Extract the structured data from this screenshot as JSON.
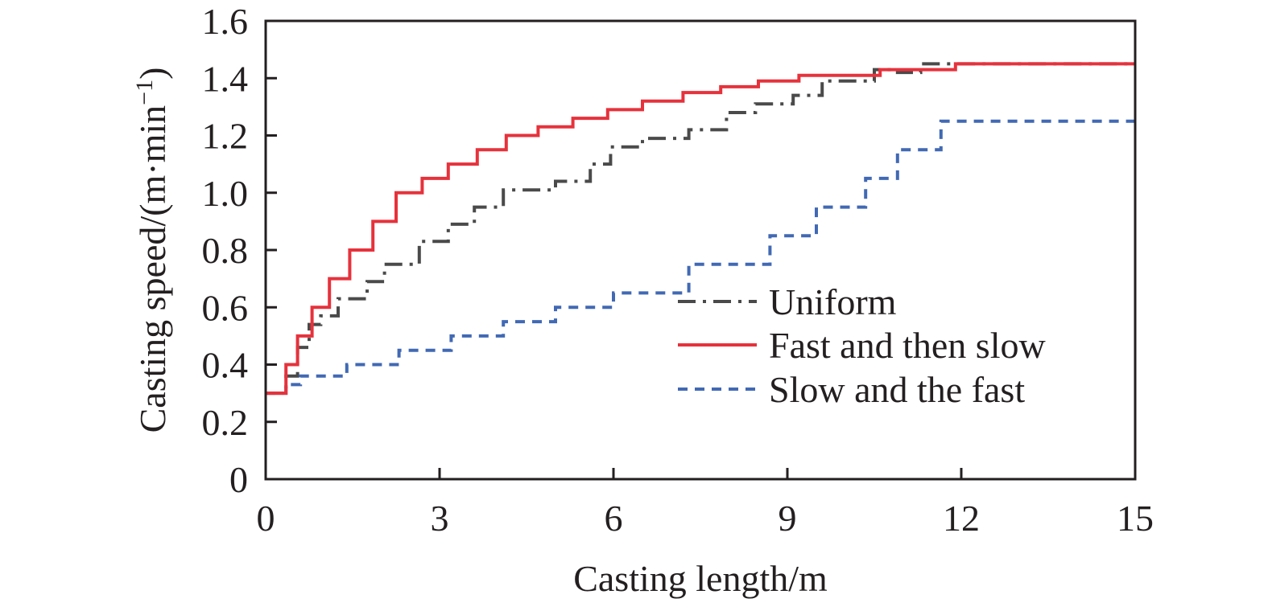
{
  "chart_data": {
    "type": "line",
    "title": "",
    "xlabel": "Casting length/m",
    "ylabel_main": "Casting speed/(m·min",
    "ylabel_sup": "−1",
    "ylabel_close": ")",
    "xlim": [
      0,
      15
    ],
    "ylim": [
      0,
      1.6
    ],
    "xticks": [
      0,
      3,
      6,
      9,
      12,
      15
    ],
    "xtick_labels": [
      "0",
      "3",
      "6",
      "9",
      "12",
      "15"
    ],
    "yticks": [
      0,
      0.2,
      0.4,
      0.6,
      0.8,
      1.0,
      1.2,
      1.4,
      1.6
    ],
    "ytick_labels": [
      "0",
      "0.2",
      "0.4",
      "0.6",
      "0.8",
      "1.0",
      "1.2",
      "1.4",
      "1.6"
    ],
    "grid": false,
    "legend_position": "lower-right",
    "series": [
      {
        "name": "Uniform",
        "color": "#4a4a4a",
        "style": "dash-dot",
        "x": [
          0,
          0.35,
          0.35,
          0.55,
          0.55,
          0.75,
          0.75,
          0.95,
          0.95,
          1.25,
          1.25,
          1.75,
          1.75,
          2.05,
          2.05,
          2.65,
          2.65,
          3.15,
          3.15,
          3.6,
          3.6,
          4.1,
          4.1,
          5.0,
          5.0,
          5.6,
          5.6,
          5.95,
          5.95,
          6.5,
          6.5,
          7.3,
          7.3,
          7.95,
          7.95,
          8.45,
          8.45,
          9.1,
          9.1,
          9.6,
          9.6,
          10.5,
          10.5,
          10.9,
          10.9,
          11.3,
          11.3,
          15
        ],
        "y": [
          0.3,
          0.3,
          0.36,
          0.36,
          0.46,
          0.46,
          0.54,
          0.54,
          0.57,
          0.57,
          0.63,
          0.63,
          0.69,
          0.69,
          0.75,
          0.75,
          0.83,
          0.83,
          0.89,
          0.89,
          0.95,
          0.95,
          1.01,
          1.01,
          1.04,
          1.04,
          1.1,
          1.1,
          1.16,
          1.16,
          1.19,
          1.19,
          1.22,
          1.22,
          1.28,
          1.28,
          1.31,
          1.31,
          1.34,
          1.34,
          1.39,
          1.39,
          1.43,
          1.43,
          1.42,
          1.42,
          1.45,
          1.45
        ]
      },
      {
        "name": "Fast and then slow",
        "color": "#e6323c",
        "style": "solid",
        "x": [
          0,
          0.35,
          0.35,
          0.55,
          0.55,
          0.8,
          0.8,
          1.1,
          1.1,
          1.45,
          1.45,
          1.85,
          1.85,
          2.25,
          2.25,
          2.7,
          2.7,
          3.15,
          3.15,
          3.65,
          3.65,
          4.15,
          4.15,
          4.7,
          4.7,
          5.3,
          5.3,
          5.9,
          5.9,
          6.5,
          6.5,
          7.2,
          7.2,
          7.85,
          7.85,
          8.5,
          8.5,
          9.2,
          9.2,
          10.6,
          10.6,
          11.9,
          11.9,
          15
        ],
        "y": [
          0.3,
          0.3,
          0.4,
          0.4,
          0.5,
          0.5,
          0.6,
          0.6,
          0.7,
          0.7,
          0.8,
          0.8,
          0.9,
          0.9,
          1.0,
          1.0,
          1.05,
          1.05,
          1.1,
          1.1,
          1.15,
          1.15,
          1.2,
          1.2,
          1.23,
          1.23,
          1.26,
          1.26,
          1.29,
          1.29,
          1.32,
          1.32,
          1.35,
          1.35,
          1.37,
          1.37,
          1.39,
          1.39,
          1.41,
          1.41,
          1.43,
          1.43,
          1.45,
          1.45
        ]
      },
      {
        "name": "Slow and the fast",
        "color": "#4169b4",
        "style": "dashed",
        "x": [
          0,
          0.35,
          0.35,
          0.6,
          0.6,
          1.4,
          1.4,
          2.3,
          2.3,
          3.2,
          3.2,
          4.1,
          4.1,
          5.0,
          5.0,
          6.0,
          6.0,
          7.3,
          7.3,
          8.7,
          8.7,
          9.5,
          9.5,
          10.35,
          10.35,
          10.9,
          10.9,
          11.65,
          11.65,
          15
        ],
        "y": [
          0.3,
          0.3,
          0.33,
          0.33,
          0.36,
          0.36,
          0.4,
          0.4,
          0.45,
          0.45,
          0.5,
          0.5,
          0.55,
          0.55,
          0.6,
          0.6,
          0.65,
          0.65,
          0.75,
          0.75,
          0.85,
          0.85,
          0.95,
          0.95,
          1.05,
          1.05,
          1.15,
          1.15,
          1.25,
          1.25
        ]
      }
    ]
  }
}
